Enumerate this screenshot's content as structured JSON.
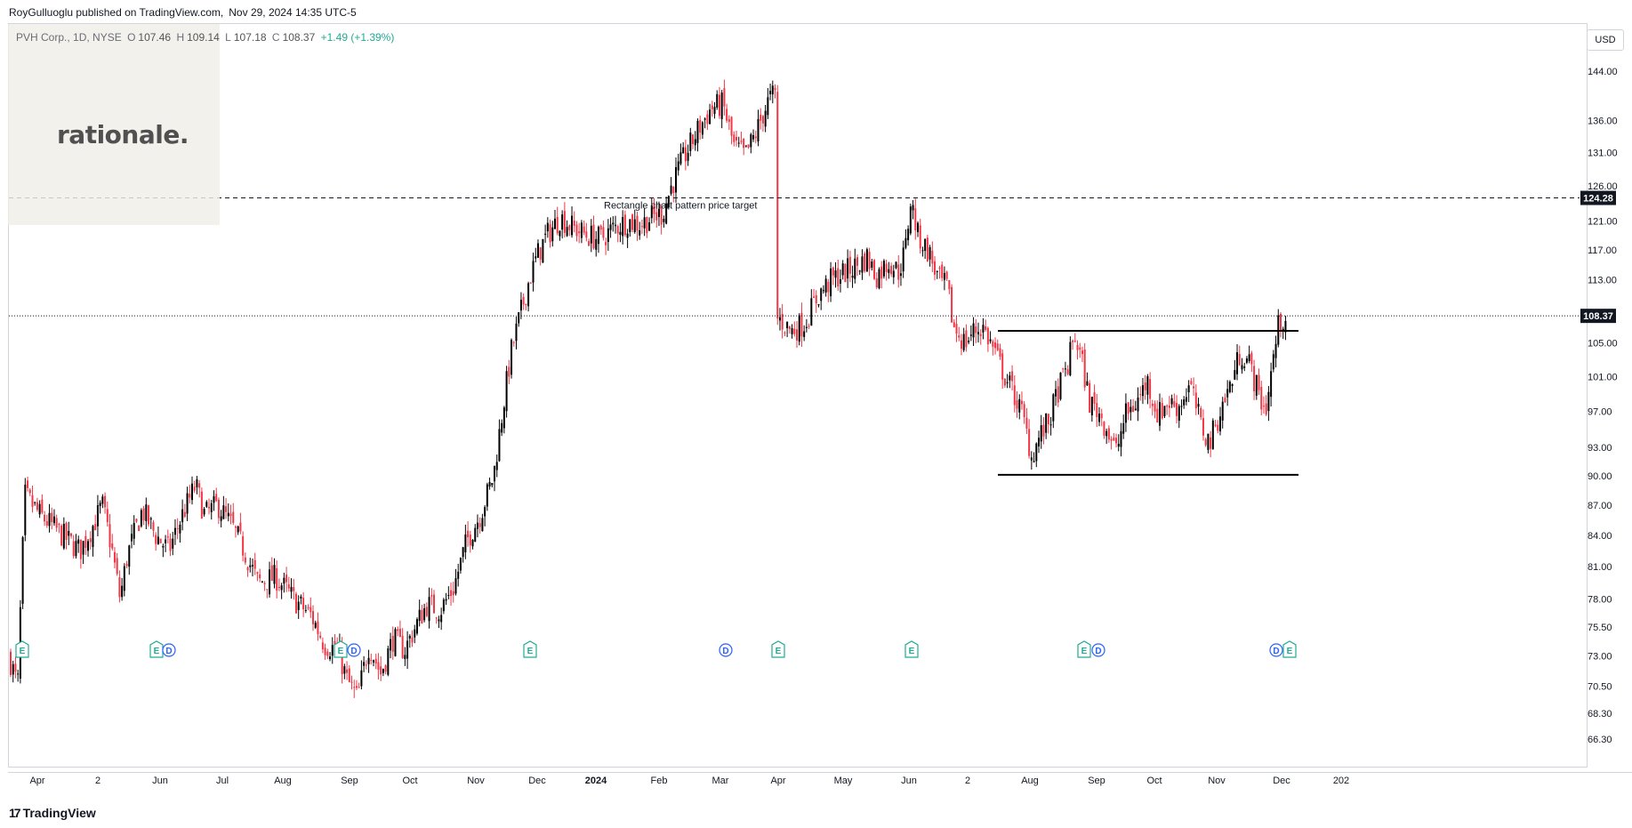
{
  "header": {
    "publisher": "RoyGulluoglu published on TradingView.com,",
    "timestamp": "Nov 29, 2024 14:35 UTC-5"
  },
  "legend": {
    "symbol": "PVH Corp., 1D, NYSE",
    "open_label": "O",
    "open": "107.46",
    "high_label": "H",
    "high": "109.14",
    "low_label": "L",
    "low": "107.18",
    "close_label": "C",
    "close": "108.37",
    "change": "+1.49 (+1.39%)"
  },
  "watermark": {
    "text": "rationale."
  },
  "currency": "USD",
  "footer": {
    "brand_mark": "17",
    "brand": "TradingView"
  },
  "colors": {
    "up": "#000000",
    "down": "#f23645",
    "frame": "#d1d4dc",
    "grid": "#e8e8e8"
  },
  "chart_data": {
    "type": "candlestick",
    "title": "PVH Corp., 1D, NYSE",
    "ylim": [
      65.0,
      147.0
    ],
    "y_scale": "log",
    "y_tick_labels": [
      "144.00",
      "136.00",
      "131.00",
      "126.00",
      "121.00",
      "117.00",
      "113.00",
      "105.00",
      "101.00",
      "97.00",
      "93.00",
      "90.00",
      "87.00",
      "84.00",
      "81.00",
      "78.00",
      "75.50",
      "73.00",
      "70.50",
      "68.30",
      "66.30"
    ],
    "x_tick_labels": [
      "Apr",
      "2",
      "Jun",
      "Jul",
      "Aug",
      "Sep",
      "Oct",
      "Nov",
      "Dec",
      "2024",
      "Feb",
      "Mar",
      "Apr",
      "May",
      "Jun",
      "2",
      "Aug",
      "Sep",
      "Oct",
      "Nov",
      "Dec",
      "202"
    ],
    "price_labels": [
      {
        "label": "124.28",
        "value": 124.28,
        "style": "dashed",
        "color": "#131722"
      },
      {
        "label": "108.37",
        "value": 108.37,
        "style": "dotted",
        "color": "#131722"
      }
    ],
    "annotations": [
      {
        "text": "Rectangle chart pattern price target"
      }
    ],
    "rectangle": {
      "upper": 106.5,
      "lower": 90.1,
      "start": "2024-07",
      "end": "2024-12"
    },
    "path_points": [
      [
        0,
        73.0
      ],
      [
        10,
        70.5
      ],
      [
        18,
        88.0
      ],
      [
        35,
        86.0
      ],
      [
        60,
        84.0
      ],
      [
        80,
        82.5
      ],
      [
        95,
        85.0
      ],
      [
        105,
        87.0
      ],
      [
        115,
        83.0
      ],
      [
        125,
        78.0
      ],
      [
        133,
        82.0
      ],
      [
        150,
        86.5
      ],
      [
        165,
        84.0
      ],
      [
        180,
        82.5
      ],
      [
        195,
        86.0
      ],
      [
        210,
        89.0
      ],
      [
        220,
        86.0
      ],
      [
        235,
        87.0
      ],
      [
        250,
        85.0
      ],
      [
        262,
        83.0
      ],
      [
        280,
        79.5
      ],
      [
        300,
        80.0
      ],
      [
        320,
        78.0
      ],
      [
        340,
        76.5
      ],
      [
        355,
        74.0
      ],
      [
        370,
        73.5
      ],
      [
        380,
        71.0
      ],
      [
        392,
        69.5
      ],
      [
        405,
        74.0
      ],
      [
        418,
        71.5
      ],
      [
        432,
        74.5
      ],
      [
        445,
        73.5
      ],
      [
        460,
        76.0
      ],
      [
        470,
        77.5
      ],
      [
        485,
        77.0
      ],
      [
        500,
        79.0
      ],
      [
        515,
        83.5
      ],
      [
        530,
        86.0
      ],
      [
        545,
        90.0
      ],
      [
        555,
        97.0
      ],
      [
        565,
        104.0
      ],
      [
        575,
        108.5
      ],
      [
        585,
        113.0
      ],
      [
        595,
        116.5
      ],
      [
        605,
        119.0
      ],
      [
        620,
        121.5
      ],
      [
        635,
        120.0
      ],
      [
        650,
        119.0
      ],
      [
        665,
        118.5
      ],
      [
        680,
        120.0
      ],
      [
        695,
        121.0
      ],
      [
        710,
        120.5
      ],
      [
        722,
        121.5
      ],
      [
        735,
        122.0
      ],
      [
        745,
        126.0
      ],
      [
        760,
        130.5
      ],
      [
        775,
        134.5
      ],
      [
        790,
        138.0
      ],
      [
        803,
        138.5
      ],
      [
        815,
        132.0
      ],
      [
        828,
        130.5
      ],
      [
        840,
        134.0
      ],
      [
        852,
        138.5
      ],
      [
        858,
        140.0
      ],
      [
        866,
        108.0
      ],
      [
        880,
        106.5
      ],
      [
        895,
        107.5
      ],
      [
        910,
        111.0
      ],
      [
        925,
        113.0
      ],
      [
        940,
        114.0
      ],
      [
        955,
        115.0
      ],
      [
        965,
        116.0
      ],
      [
        975,
        113.5
      ],
      [
        990,
        115.5
      ],
      [
        1000,
        114.0
      ],
      [
        1008,
        117.0
      ],
      [
        1014,
        124.0
      ],
      [
        1022,
        119.0
      ],
      [
        1035,
        116.5
      ],
      [
        1045,
        113.0
      ],
      [
        1055,
        112.0
      ],
      [
        1062,
        107.0
      ],
      [
        1075,
        105.0
      ],
      [
        1085,
        106.5
      ],
      [
        1095,
        107.0
      ],
      [
        1108,
        104.0
      ],
      [
        1120,
        101.0
      ],
      [
        1130,
        99.0
      ],
      [
        1140,
        96.5
      ],
      [
        1150,
        92.0
      ],
      [
        1158,
        94.0
      ],
      [
        1170,
        96.0
      ],
      [
        1180,
        99.5
      ],
      [
        1190,
        102.0
      ],
      [
        1198,
        106.0
      ],
      [
        1206,
        103.0
      ],
      [
        1215,
        98.0
      ],
      [
        1225,
        97.0
      ],
      [
        1235,
        95.0
      ],
      [
        1245,
        92.5
      ],
      [
        1255,
        96.5
      ],
      [
        1268,
        98.0
      ],
      [
        1280,
        100.5
      ],
      [
        1292,
        96.5
      ],
      [
        1302,
        98.0
      ],
      [
        1315,
        97.5
      ],
      [
        1328,
        100.0
      ],
      [
        1340,
        95.5
      ],
      [
        1350,
        93.5
      ],
      [
        1362,
        97.0
      ],
      [
        1375,
        100.5
      ],
      [
        1385,
        104.0
      ],
      [
        1395,
        102.5
      ],
      [
        1405,
        99.0
      ],
      [
        1413,
        97.0
      ],
      [
        1420,
        102.0
      ],
      [
        1428,
        107.5
      ],
      [
        1436,
        108.4
      ]
    ]
  }
}
